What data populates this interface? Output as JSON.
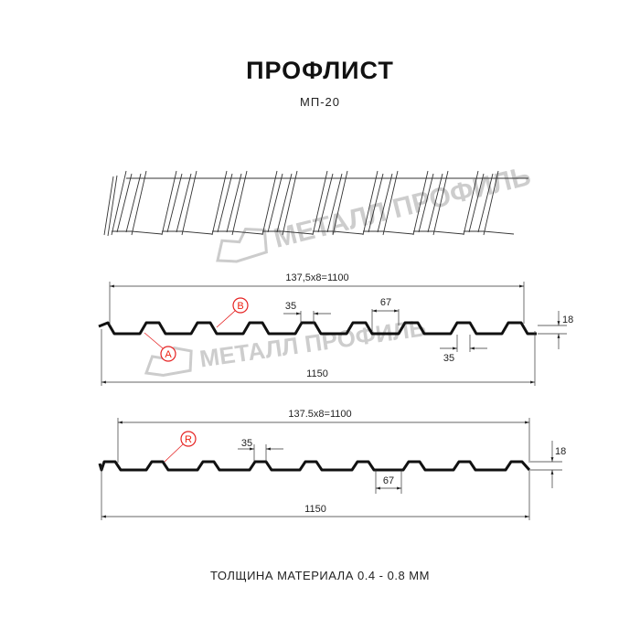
{
  "header": {
    "title": "ПРОФЛИСТ",
    "subtitle": "МП-20"
  },
  "watermark": "МЕТАЛЛ ПРОФИЛЬ",
  "profile_top": {
    "pitch_dim": "137,5x8=1100",
    "width_dim": "1150",
    "rib_top": "35",
    "valley": "67",
    "rib_bottom": "35",
    "height": "18",
    "label_a": "A",
    "label_b": "B"
  },
  "profile_bottom": {
    "pitch_dim": "137.5x8=1100",
    "width_dim": "1150",
    "rib_top": "35",
    "valley": "67",
    "height": "18",
    "label_r": "R"
  },
  "footer": {
    "thickness": "ТОЛЩИНА МАТЕРИАЛА 0.4 - 0.8 ММ"
  },
  "colors": {
    "profile": "#111111",
    "callout": "#e52222",
    "watermark": "#bdbdbd"
  }
}
